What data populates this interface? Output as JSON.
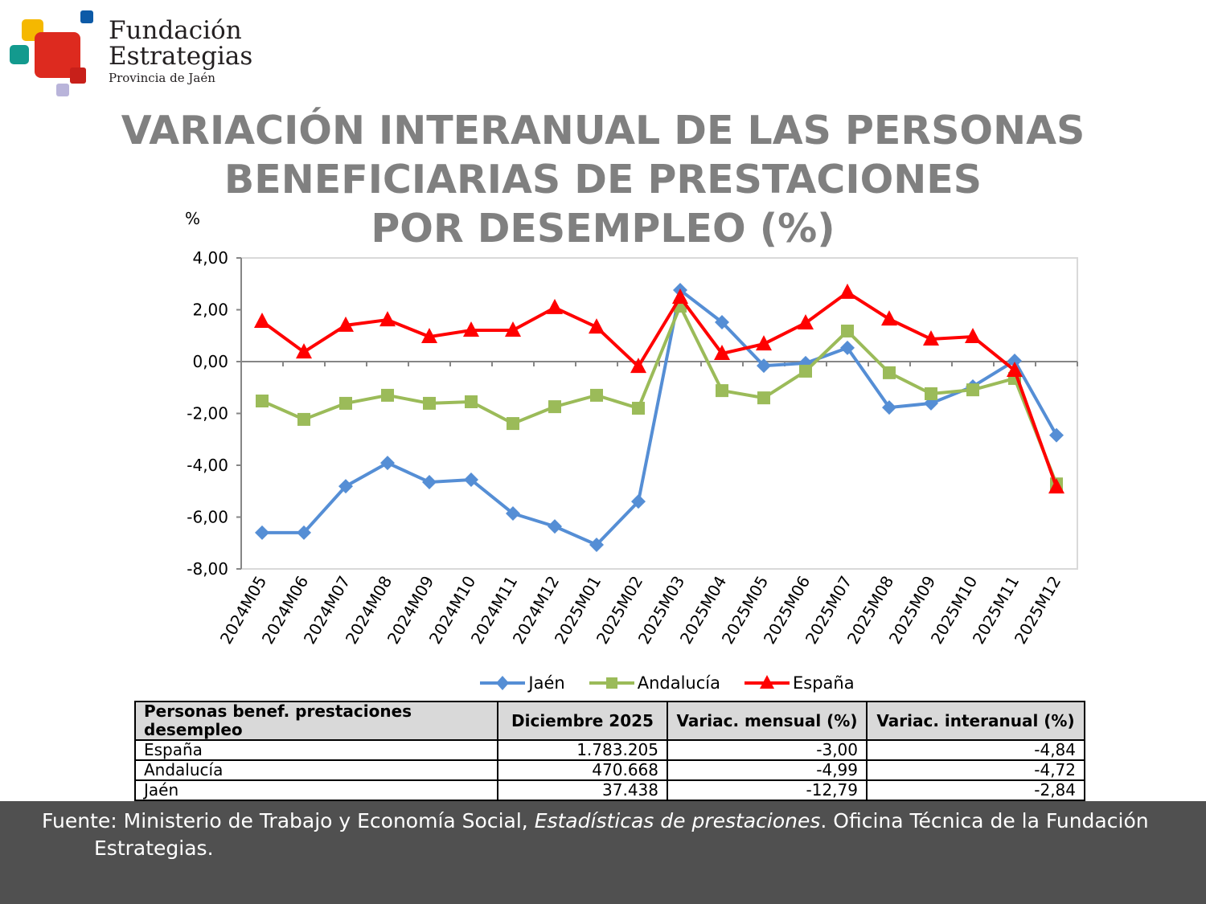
{
  "logo": {
    "line1": "Fundación",
    "line2": "Estrategias",
    "line3": "Provincia de Jaén"
  },
  "title": {
    "line1": "VARIACIÓN INTERANUAL DE LAS PERSONAS",
    "line2": "BENEFICIARIAS DE PRESTACIONES",
    "line3": "POR DESEMPLEO (%)"
  },
  "chart_data": {
    "type": "line",
    "title": "VARIACIÓN INTERANUAL DE LAS PERSONAS BENEFICIARIAS DE PRESTACIONES POR DESEMPLEO (%)",
    "ylabel": "%",
    "ylim": [
      -8,
      4
    ],
    "yticks": [
      "4,00",
      "2,00",
      "0,00",
      "-2,00",
      "-4,00",
      "-6,00",
      "-8,00"
    ],
    "grid": false,
    "legend": "bottom",
    "categories": [
      "2024M05",
      "2024M06",
      "2024M07",
      "2024M08",
      "2024M09",
      "2024M10",
      "2024M11",
      "2024M12",
      "2025M01",
      "2025M02",
      "2025M03",
      "2025M04",
      "2025M05",
      "2025M06",
      "2025M07",
      "2025M08",
      "2025M09",
      "2025M10",
      "2025M11",
      "2025M12"
    ],
    "series": [
      {
        "name": "Jaén",
        "color": "#558ed5",
        "marker": "diamond",
        "values": [
          -6.6,
          -6.6,
          -4.81,
          -3.91,
          -4.65,
          -4.56,
          -5.86,
          -6.36,
          -7.07,
          -5.4,
          2.76,
          1.52,
          -0.16,
          -0.06,
          0.53,
          -1.77,
          -1.61,
          -0.96,
          0.03,
          -2.84
        ]
      },
      {
        "name": "Andalucía",
        "color": "#9bbb59",
        "marker": "square",
        "values": [
          -1.52,
          -2.23,
          -1.61,
          -1.3,
          -1.61,
          -1.55,
          -2.39,
          -1.74,
          -1.3,
          -1.8,
          2.14,
          -1.12,
          -1.4,
          -0.37,
          1.18,
          -0.43,
          -1.24,
          -1.09,
          -0.65,
          -4.72
        ]
      },
      {
        "name": "España",
        "color": "#ff0000",
        "marker": "triangle",
        "values": [
          1.55,
          0.37,
          1.4,
          1.61,
          0.96,
          1.21,
          1.21,
          2.08,
          1.33,
          -0.19,
          2.48,
          0.31,
          0.68,
          1.49,
          2.67,
          1.64,
          0.87,
          0.96,
          -0.34,
          -4.84
        ]
      }
    ]
  },
  "table": {
    "headers": [
      "Personas benef. prestaciones desempleo",
      "Diciembre 2025",
      "Variac. mensual (%)",
      "Variac. interanual (%)"
    ],
    "rows": [
      [
        "España",
        "1.783.205",
        "-3,00",
        "-4,84"
      ],
      [
        "Andalucía",
        "470.668",
        "-4,99",
        "-4,72"
      ],
      [
        "Jaén",
        "37.438",
        "-12,79",
        "-2,84"
      ]
    ]
  },
  "footer": {
    "prefix": "Fuente: Ministerio de Trabajo y Economía Social, ",
    "italic": "Estadísticas de prestaciones",
    "suffix": ". Oficina Técnica de la Fundación",
    "line2": "Estrategias."
  }
}
